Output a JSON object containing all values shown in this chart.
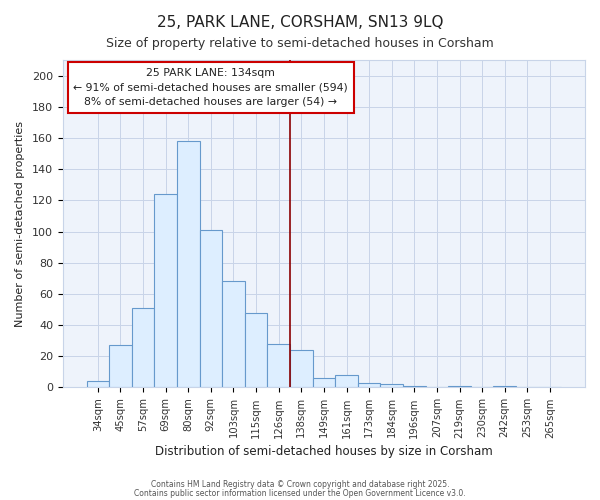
{
  "title_line1": "25, PARK LANE, CORSHAM, SN13 9LQ",
  "title_line2": "Size of property relative to semi-detached houses in Corsham",
  "xlabel": "Distribution of semi-detached houses by size in Corsham",
  "ylabel": "Number of semi-detached properties",
  "bar_labels": [
    "34sqm",
    "45sqm",
    "57sqm",
    "69sqm",
    "80sqm",
    "92sqm",
    "103sqm",
    "115sqm",
    "126sqm",
    "138sqm",
    "149sqm",
    "161sqm",
    "173sqm",
    "184sqm",
    "196sqm",
    "207sqm",
    "219sqm",
    "230sqm",
    "242sqm",
    "253sqm",
    "265sqm"
  ],
  "bar_values": [
    4,
    27,
    51,
    124,
    158,
    101,
    68,
    48,
    28,
    24,
    6,
    8,
    3,
    2,
    1,
    0,
    1,
    0,
    1,
    0,
    0
  ],
  "bar_color": "#ddeeff",
  "bar_edge_color": "#6699cc",
  "vline_x": 9.0,
  "vline_color": "#8b0000",
  "annotation_title": "25 PARK LANE: 134sqm",
  "annotation_line2": "← 91% of semi-detached houses are smaller (594)",
  "annotation_line3": "8% of semi-detached houses are larger (54) →",
  "annotation_box_color": "#ffffff",
  "annotation_box_edge": "#cc0000",
  "ylim": [
    0,
    210
  ],
  "yticks": [
    0,
    20,
    40,
    60,
    80,
    100,
    120,
    140,
    160,
    180,
    200
  ],
  "background_color": "#ffffff",
  "plot_bg_color": "#eef3fb",
  "grid_color": "#c8d4e8",
  "footer_line1": "Contains HM Land Registry data © Crown copyright and database right 2025.",
  "footer_line2": "Contains public sector information licensed under the Open Government Licence v3.0."
}
